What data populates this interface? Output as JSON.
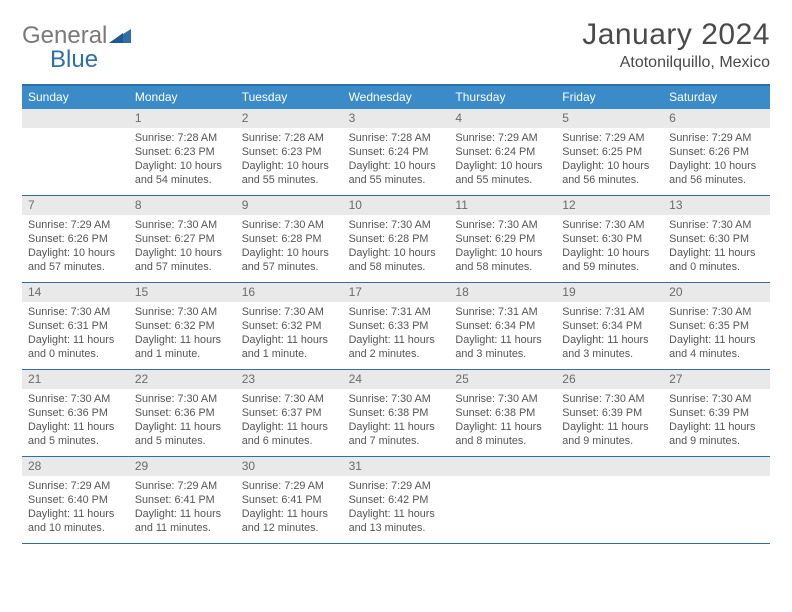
{
  "brand": {
    "part1": "General",
    "part2": "Blue"
  },
  "title": "January 2024",
  "location": "Atotonilquillo, Mexico",
  "colors": {
    "header_bg": "#3b8bc9",
    "border": "#2f6fa7",
    "daynum_bg": "#e9e9e9",
    "text": "#555555"
  },
  "day_names": [
    "Sunday",
    "Monday",
    "Tuesday",
    "Wednesday",
    "Thursday",
    "Friday",
    "Saturday"
  ],
  "weeks": [
    [
      null,
      {
        "n": "1",
        "sr": "7:28 AM",
        "ss": "6:23 PM",
        "dl": "10 hours and 54 minutes."
      },
      {
        "n": "2",
        "sr": "7:28 AM",
        "ss": "6:23 PM",
        "dl": "10 hours and 55 minutes."
      },
      {
        "n": "3",
        "sr": "7:28 AM",
        "ss": "6:24 PM",
        "dl": "10 hours and 55 minutes."
      },
      {
        "n": "4",
        "sr": "7:29 AM",
        "ss": "6:24 PM",
        "dl": "10 hours and 55 minutes."
      },
      {
        "n": "5",
        "sr": "7:29 AM",
        "ss": "6:25 PM",
        "dl": "10 hours and 56 minutes."
      },
      {
        "n": "6",
        "sr": "7:29 AM",
        "ss": "6:26 PM",
        "dl": "10 hours and 56 minutes."
      }
    ],
    [
      {
        "n": "7",
        "sr": "7:29 AM",
        "ss": "6:26 PM",
        "dl": "10 hours and 57 minutes."
      },
      {
        "n": "8",
        "sr": "7:30 AM",
        "ss": "6:27 PM",
        "dl": "10 hours and 57 minutes."
      },
      {
        "n": "9",
        "sr": "7:30 AM",
        "ss": "6:28 PM",
        "dl": "10 hours and 57 minutes."
      },
      {
        "n": "10",
        "sr": "7:30 AM",
        "ss": "6:28 PM",
        "dl": "10 hours and 58 minutes."
      },
      {
        "n": "11",
        "sr": "7:30 AM",
        "ss": "6:29 PM",
        "dl": "10 hours and 58 minutes."
      },
      {
        "n": "12",
        "sr": "7:30 AM",
        "ss": "6:30 PM",
        "dl": "10 hours and 59 minutes."
      },
      {
        "n": "13",
        "sr": "7:30 AM",
        "ss": "6:30 PM",
        "dl": "11 hours and 0 minutes."
      }
    ],
    [
      {
        "n": "14",
        "sr": "7:30 AM",
        "ss": "6:31 PM",
        "dl": "11 hours and 0 minutes."
      },
      {
        "n": "15",
        "sr": "7:30 AM",
        "ss": "6:32 PM",
        "dl": "11 hours and 1 minute."
      },
      {
        "n": "16",
        "sr": "7:30 AM",
        "ss": "6:32 PM",
        "dl": "11 hours and 1 minute."
      },
      {
        "n": "17",
        "sr": "7:31 AM",
        "ss": "6:33 PM",
        "dl": "11 hours and 2 minutes."
      },
      {
        "n": "18",
        "sr": "7:31 AM",
        "ss": "6:34 PM",
        "dl": "11 hours and 3 minutes."
      },
      {
        "n": "19",
        "sr": "7:31 AM",
        "ss": "6:34 PM",
        "dl": "11 hours and 3 minutes."
      },
      {
        "n": "20",
        "sr": "7:30 AM",
        "ss": "6:35 PM",
        "dl": "11 hours and 4 minutes."
      }
    ],
    [
      {
        "n": "21",
        "sr": "7:30 AM",
        "ss": "6:36 PM",
        "dl": "11 hours and 5 minutes."
      },
      {
        "n": "22",
        "sr": "7:30 AM",
        "ss": "6:36 PM",
        "dl": "11 hours and 5 minutes."
      },
      {
        "n": "23",
        "sr": "7:30 AM",
        "ss": "6:37 PM",
        "dl": "11 hours and 6 minutes."
      },
      {
        "n": "24",
        "sr": "7:30 AM",
        "ss": "6:38 PM",
        "dl": "11 hours and 7 minutes."
      },
      {
        "n": "25",
        "sr": "7:30 AM",
        "ss": "6:38 PM",
        "dl": "11 hours and 8 minutes."
      },
      {
        "n": "26",
        "sr": "7:30 AM",
        "ss": "6:39 PM",
        "dl": "11 hours and 9 minutes."
      },
      {
        "n": "27",
        "sr": "7:30 AM",
        "ss": "6:39 PM",
        "dl": "11 hours and 9 minutes."
      }
    ],
    [
      {
        "n": "28",
        "sr": "7:29 AM",
        "ss": "6:40 PM",
        "dl": "11 hours and 10 minutes."
      },
      {
        "n": "29",
        "sr": "7:29 AM",
        "ss": "6:41 PM",
        "dl": "11 hours and 11 minutes."
      },
      {
        "n": "30",
        "sr": "7:29 AM",
        "ss": "6:41 PM",
        "dl": "11 hours and 12 minutes."
      },
      {
        "n": "31",
        "sr": "7:29 AM",
        "ss": "6:42 PM",
        "dl": "11 hours and 13 minutes."
      },
      null,
      null,
      null
    ]
  ],
  "labels": {
    "sunrise": "Sunrise:",
    "sunset": "Sunset:",
    "daylight": "Daylight:"
  }
}
